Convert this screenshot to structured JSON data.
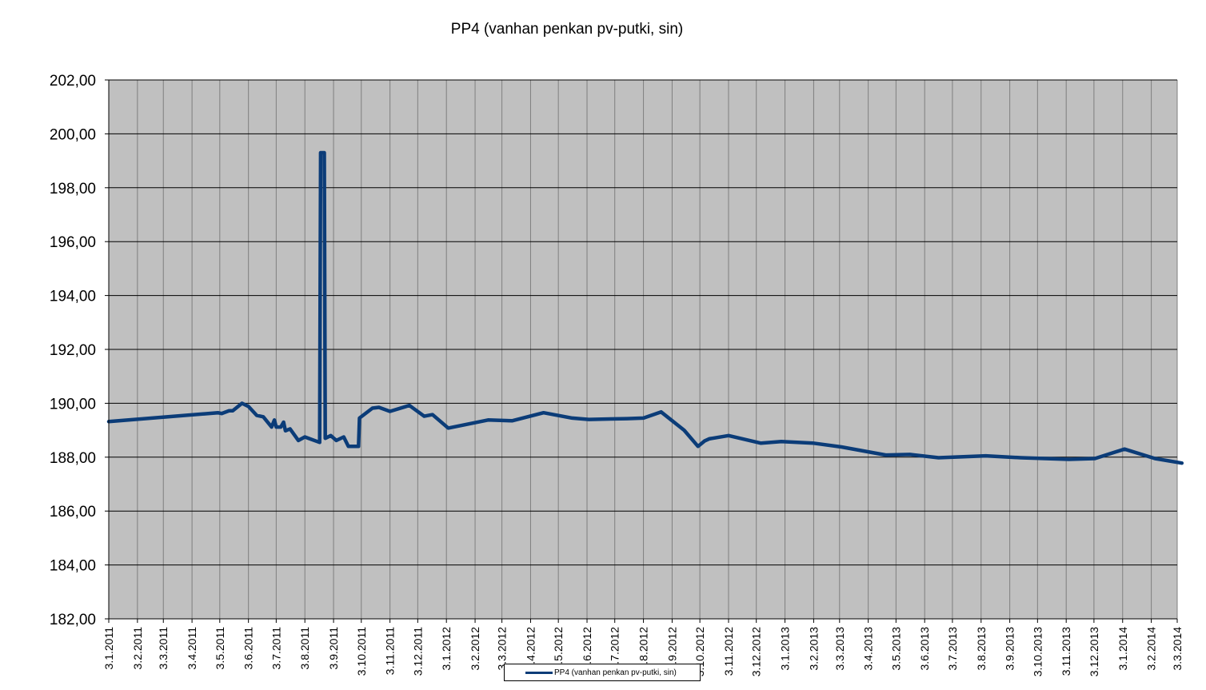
{
  "chart_data": {
    "type": "line",
    "title": "PP4 (vanhan  penkan  pv-putki,  sin)",
    "xlabel": "",
    "ylabel": "",
    "ylim": [
      182,
      202
    ],
    "y_ticks": [
      "182,00",
      "184,00",
      "186,00",
      "188,00",
      "190,00",
      "192,00",
      "194,00",
      "196,00",
      "198,00",
      "200,00",
      "202,00"
    ],
    "x_range": [
      "2011-01-03",
      "2014-03-03"
    ],
    "x_ticks": [
      "3.1.2011",
      "3.2.2011",
      "3.3.2011",
      "3.4.2011",
      "3.5.2011",
      "3.6.2011",
      "3.7.2011",
      "3.8.2011",
      "3.9.2011",
      "3.10.2011",
      "3.11.2011",
      "3.12.2011",
      "3.1.2012",
      "3.2.2012",
      "3.3.2012",
      "3.4.2012",
      "3.5.2012",
      "3.6.2012",
      "3.7.2012",
      "3.8.2012",
      "3.9.2012",
      "3.10.2012",
      "3.11.2012",
      "3.12.2012",
      "3.1.2013",
      "3.2.2013",
      "3.3.2013",
      "3.4.2013",
      "3.5.2013",
      "3.6.2013",
      "3.7.2013",
      "3.8.2013",
      "3.9.2013",
      "3.10.2013",
      "3.11.2013",
      "3.12.2013",
      "3.1.2014",
      "3.2.2014",
      "3.3.2014"
    ],
    "grid": true,
    "legend_position": "bottom",
    "plot_background": "#c0c0c0",
    "line_color": "#0b3c78",
    "series": [
      {
        "name": "PP4 (vanhan penkan pv-putki, sin)",
        "points": [
          [
            "2011-01-03",
            189.32
          ],
          [
            "2011-05-01",
            189.65
          ],
          [
            "2011-05-05",
            189.62
          ],
          [
            "2011-05-13",
            189.72
          ],
          [
            "2011-05-17",
            189.72
          ],
          [
            "2011-05-27",
            190.0
          ],
          [
            "2011-06-03",
            189.88
          ],
          [
            "2011-06-12",
            189.55
          ],
          [
            "2011-06-19",
            189.5
          ],
          [
            "2011-06-28",
            189.12
          ],
          [
            "2011-07-01",
            189.38
          ],
          [
            "2011-07-03",
            189.12
          ],
          [
            "2011-07-08",
            189.12
          ],
          [
            "2011-07-11",
            189.3
          ],
          [
            "2011-07-13",
            188.98
          ],
          [
            "2011-07-18",
            189.05
          ],
          [
            "2011-07-27",
            188.62
          ],
          [
            "2011-08-03",
            188.75
          ],
          [
            "2011-08-19",
            188.55
          ],
          [
            "2011-08-20",
            199.3
          ],
          [
            "2011-08-24",
            199.3
          ],
          [
            "2011-08-25",
            188.7
          ],
          [
            "2011-08-31",
            188.8
          ],
          [
            "2011-09-06",
            188.62
          ],
          [
            "2011-09-14",
            188.75
          ],
          [
            "2011-09-19",
            188.4
          ],
          [
            "2011-09-30",
            188.4
          ],
          [
            "2011-10-01",
            189.45
          ],
          [
            "2011-10-15",
            189.82
          ],
          [
            "2011-10-22",
            189.85
          ],
          [
            "2011-11-03",
            189.7
          ],
          [
            "2011-11-24",
            189.92
          ],
          [
            "2011-12-10",
            189.52
          ],
          [
            "2011-12-19",
            189.58
          ],
          [
            "2012-01-05",
            189.08
          ],
          [
            "2012-02-17",
            189.38
          ],
          [
            "2012-03-14",
            189.35
          ],
          [
            "2012-04-17",
            189.65
          ],
          [
            "2012-05-18",
            189.45
          ],
          [
            "2012-06-05",
            189.4
          ],
          [
            "2012-07-16",
            189.43
          ],
          [
            "2012-08-03",
            189.45
          ],
          [
            "2012-08-22",
            189.68
          ],
          [
            "2012-09-16",
            189.0
          ],
          [
            "2012-10-01",
            188.4
          ],
          [
            "2012-10-08",
            188.6
          ],
          [
            "2012-10-13",
            188.68
          ],
          [
            "2012-11-03",
            188.8
          ],
          [
            "2012-12-08",
            188.52
          ],
          [
            "2012-12-30",
            188.58
          ],
          [
            "2013-02-03",
            188.52
          ],
          [
            "2013-03-05",
            188.38
          ],
          [
            "2013-04-22",
            188.08
          ],
          [
            "2013-05-18",
            188.1
          ],
          [
            "2013-06-18",
            187.98
          ],
          [
            "2013-08-08",
            188.05
          ],
          [
            "2013-09-15",
            187.98
          ],
          [
            "2013-11-06",
            187.92
          ],
          [
            "2013-12-04",
            187.95
          ],
          [
            "2014-01-05",
            188.3
          ],
          [
            "2014-02-07",
            187.95
          ],
          [
            "2014-03-08",
            187.78
          ]
        ]
      }
    ]
  }
}
